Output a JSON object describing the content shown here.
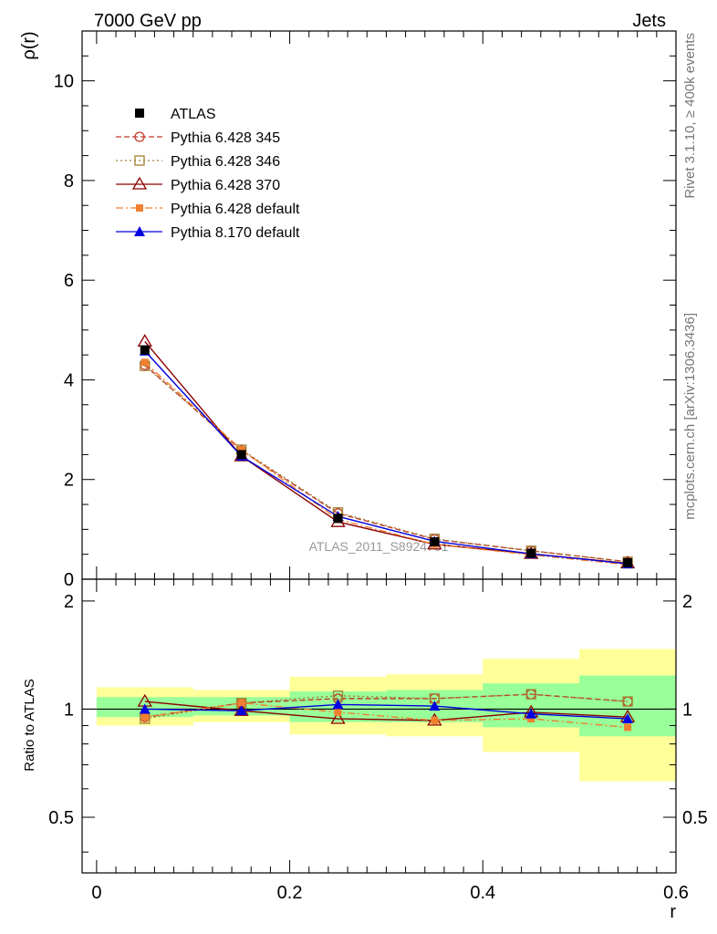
{
  "header": {
    "left_label": "7000 GeV pp",
    "right_label": "Jets"
  },
  "side_labels": {
    "top": "Rivet 3.1.10, ≥ 400k events",
    "bottom": "mcplots.cern.ch [arXiv:1306.3436]"
  },
  "watermark": "ATLAS_2011_S8924791",
  "chart_data": [
    {
      "type": "line",
      "title": "",
      "ylabel": "ρ(r)",
      "xlabel": "",
      "xlim": [
        -0.015,
        0.6
      ],
      "ylim": [
        0,
        11
      ],
      "x_ticks": [
        0,
        0.2,
        0.4,
        0.6
      ],
      "y_ticks": [
        0,
        2,
        4,
        6,
        8,
        10
      ],
      "y_tick_labels": [
        "0",
        "2",
        "4",
        "6",
        "8",
        "10"
      ],
      "legend_position": "top-left",
      "x": [
        0.05,
        0.15,
        0.25,
        0.35,
        0.45,
        0.55
      ],
      "series": [
        {
          "name": "ATLAS",
          "marker": "filled-square",
          "color": "#000000",
          "line": "none",
          "values": [
            4.6,
            2.5,
            1.22,
            0.75,
            0.52,
            0.33
          ]
        },
        {
          "name": "Pythia 6.428 345",
          "marker": "open-circle",
          "color": "#c0392b",
          "line": "dashed",
          "values": [
            4.3,
            2.58,
            1.32,
            0.8,
            0.57,
            0.35
          ]
        },
        {
          "name": "Pythia 6.428 346",
          "marker": "open-square",
          "color": "#a08030",
          "line": "dotted",
          "values": [
            4.28,
            2.6,
            1.34,
            0.81,
            0.57,
            0.35
          ]
        },
        {
          "name": "Pythia 6.428 370",
          "marker": "open-triangle",
          "color": "#8b0000",
          "line": "solid",
          "values": [
            4.77,
            2.47,
            1.15,
            0.7,
            0.51,
            0.32
          ]
        },
        {
          "name": "Pythia 6.428 default",
          "marker": "small-filled-square",
          "color": "#f07f30",
          "line": "dashdot",
          "values": [
            4.35,
            2.6,
            1.2,
            0.7,
            0.49,
            0.29
          ]
        },
        {
          "name": "Pythia 8.170 default",
          "marker": "filled-triangle",
          "color": "#0000e0",
          "line": "solid",
          "values": [
            4.58,
            2.47,
            1.26,
            0.76,
            0.51,
            0.31
          ]
        }
      ]
    },
    {
      "type": "line",
      "title": "",
      "ylabel": "Ratio to ATLAS",
      "xlabel": "r",
      "xlim": [
        -0.015,
        0.6
      ],
      "ylim": [
        0.35,
        2.3
      ],
      "x_ticks": [
        0,
        0.2,
        0.4,
        0.6
      ],
      "x_tick_labels": [
        "0",
        "0.2",
        "0.4",
        "0.6"
      ],
      "y_ticks": [
        0.5,
        1,
        2
      ],
      "y_tick_labels": [
        "0.5",
        "1",
        "2"
      ],
      "reference_line": 1,
      "bins": [
        [
          0,
          0.1
        ],
        [
          0.1,
          0.2
        ],
        [
          0.2,
          0.3
        ],
        [
          0.3,
          0.4
        ],
        [
          0.4,
          0.5
        ],
        [
          0.5,
          0.6
        ]
      ],
      "uncertainty_bands": [
        {
          "name": "total uncertainty",
          "color": "#ffff99",
          "low": [
            0.9,
            0.92,
            0.85,
            0.84,
            0.76,
            0.63
          ],
          "high": [
            1.15,
            1.13,
            1.23,
            1.25,
            1.38,
            1.47
          ]
        },
        {
          "name": "statistical uncertainty",
          "color": "#99ff99",
          "low": [
            0.95,
            0.96,
            0.92,
            0.92,
            0.89,
            0.84
          ],
          "high": [
            1.08,
            1.08,
            1.12,
            1.13,
            1.18,
            1.24
          ]
        }
      ],
      "x": [
        0.05,
        0.15,
        0.25,
        0.35,
        0.45,
        0.55
      ],
      "series": [
        {
          "name": "Pythia 6.428 345",
          "values": [
            0.95,
            1.04,
            1.07,
            1.07,
            1.1,
            1.05
          ]
        },
        {
          "name": "Pythia 6.428 346",
          "values": [
            0.94,
            1.04,
            1.09,
            1.07,
            1.1,
            1.05
          ]
        },
        {
          "name": "Pythia 6.428 370",
          "values": [
            1.05,
            0.99,
            0.94,
            0.93,
            0.98,
            0.95
          ]
        },
        {
          "name": "Pythia 6.428 default",
          "values": [
            0.95,
            1.04,
            0.98,
            0.93,
            0.94,
            0.89
          ]
        },
        {
          "name": "Pythia 8.170 default",
          "values": [
            1.0,
            0.99,
            1.03,
            1.02,
            0.97,
            0.94
          ]
        }
      ]
    }
  ]
}
